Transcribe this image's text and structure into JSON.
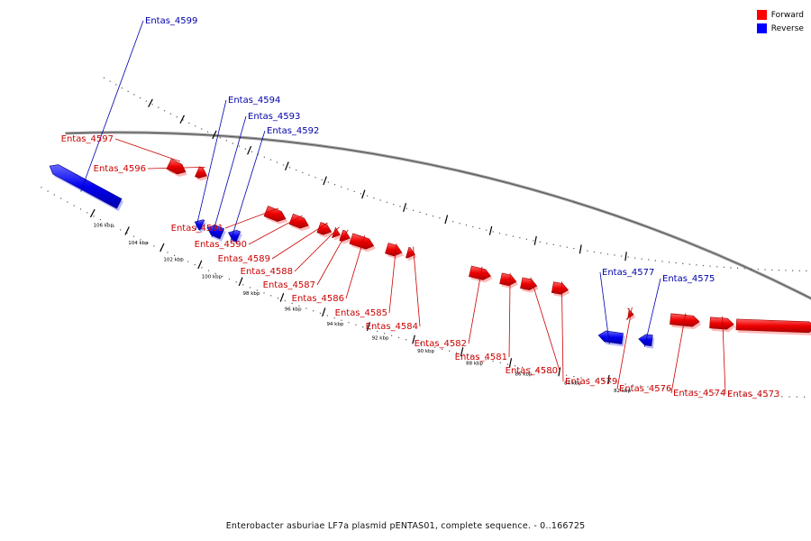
{
  "legend": [
    {
      "label": "Forward",
      "color": "#ff0000"
    },
    {
      "label": "Reverse",
      "color": "#0000ff"
    }
  ],
  "caption": "Enterobacter asburiae LF7a plasmid pENTAS01, complete sequence. - 0..166725",
  "colors": {
    "forward": "#ff0000",
    "reverse": "#0000ff",
    "forward_label": "#cc0000",
    "reverse_label": "#0000aa",
    "backbone": "#808080"
  },
  "tick_labels": [
    "106 kbp",
    "104 kbp",
    "102 kbp",
    "100 kbp",
    "98 kbp",
    "96 kbp",
    "94 kbp",
    "92 kbp",
    "90 kbp",
    "88 kbp",
    "86 kbp",
    "84 kbp",
    "82 kbp"
  ],
  "genes": [
    {
      "name": "Entas_4599",
      "strand": "reverse"
    },
    {
      "name": "Entas_4597",
      "strand": "forward"
    },
    {
      "name": "Entas_4596",
      "strand": "forward"
    },
    {
      "name": "Entas_4594",
      "strand": "reverse"
    },
    {
      "name": "Entas_4593",
      "strand": "reverse"
    },
    {
      "name": "Entas_4592",
      "strand": "reverse"
    },
    {
      "name": "Entas_4591",
      "strand": "forward"
    },
    {
      "name": "Entas_4590",
      "strand": "forward"
    },
    {
      "name": "Entas_4589",
      "strand": "forward"
    },
    {
      "name": "Entas_4588",
      "strand": "forward"
    },
    {
      "name": "Entas_4587",
      "strand": "forward"
    },
    {
      "name": "Entas_4586",
      "strand": "forward"
    },
    {
      "name": "Entas_4585",
      "strand": "forward"
    },
    {
      "name": "Entas_4584",
      "strand": "forward"
    },
    {
      "name": "Entas_4582",
      "strand": "forward"
    },
    {
      "name": "Entas_4581",
      "strand": "forward"
    },
    {
      "name": "Entas_4580",
      "strand": "forward"
    },
    {
      "name": "Entas_4579",
      "strand": "forward"
    },
    {
      "name": "Entas_4577",
      "strand": "reverse"
    },
    {
      "name": "Entas_4576",
      "strand": "forward"
    },
    {
      "name": "Entas_4575",
      "strand": "reverse"
    },
    {
      "name": "Entas_4574",
      "strand": "forward"
    },
    {
      "name": "Entas_4573",
      "strand": "forward"
    }
  ]
}
